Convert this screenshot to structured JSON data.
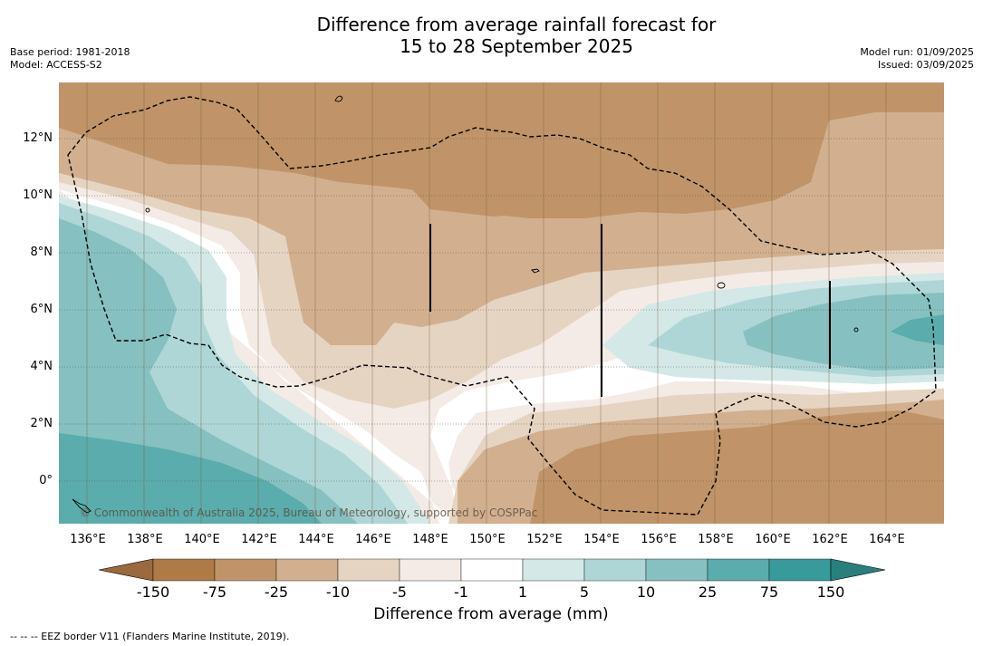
{
  "title": {
    "line1": "Difference from average rainfall forecast for",
    "line2": "15 to 28 September 2025"
  },
  "meta": {
    "base_period": "Base period: 1981-2018",
    "model": "Model: ACCESS-S2",
    "model_run": "Model run: 01/09/2025",
    "issued": "Issued: 03/09/2025"
  },
  "map": {
    "lat_labels": [
      "12°N",
      "10°N",
      "8°N",
      "6°N",
      "4°N",
      "2°N",
      "0°"
    ],
    "lon_labels": [
      "136°E",
      "138°E",
      "140°E",
      "142°E",
      "144°E",
      "146°E",
      "148°E",
      "150°E",
      "152°E",
      "154°E",
      "156°E",
      "158°E",
      "160°E",
      "162°E",
      "164°E"
    ],
    "copyright": "© Commonwealth of Australia 2025, Bureau of Meteorology, supported by COSPPac"
  },
  "colorbar": {
    "title": "Difference from average (mm)",
    "tick_labels": [
      "-150",
      "-75",
      "-25",
      "-10",
      "-5",
      "-1",
      "1",
      "5",
      "10",
      "25",
      "75",
      "150"
    ],
    "colors": [
      "#9a6a3e",
      "#ae7a45",
      "#c09468",
      "#d2b08f",
      "#e6d4c3",
      "#f4ebe6",
      "#ffffff",
      "#d4e8e8",
      "#aed6d6",
      "#86c0c0",
      "#5bacac",
      "#379b9b",
      "#28807d"
    ]
  },
  "footnote": "-- -- -- EEZ border V11 (Flanders Marine Institute, 2019)."
}
